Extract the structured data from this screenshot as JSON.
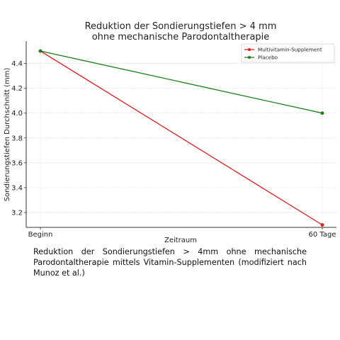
{
  "chart_data": {
    "type": "line",
    "title": "Reduktion der Sondierungstiefen > 4 mm",
    "subtitle": "ohne mechanische Parodontaltherapie",
    "xlabel": "Zeitraum",
    "ylabel": "Sondierungstiefen Durchschnitt (mm)",
    "categories": [
      "Beginn",
      "60 Tage"
    ],
    "ylim": [
      3.08,
      4.58
    ],
    "yticks": [
      "3.2",
      "3.4",
      "3.6",
      "3.8",
      "4.0",
      "4.2",
      "4.4"
    ],
    "grid": true,
    "legend_position": "top-right",
    "series": [
      {
        "name": "Multivitamin-Supplement",
        "values": [
          4.5,
          3.1
        ],
        "color": "#e41a1c"
      },
      {
        "name": "Placebo",
        "values": [
          4.5,
          4.0
        ],
        "color": "#1a7f1a"
      }
    ]
  },
  "caption": "Reduktion der Sondierungstiefen > 4mm ohne mechanische Parodontaltherapie mittels Vitamin-Supplementen (modifiziert nach Munoz et al.)"
}
